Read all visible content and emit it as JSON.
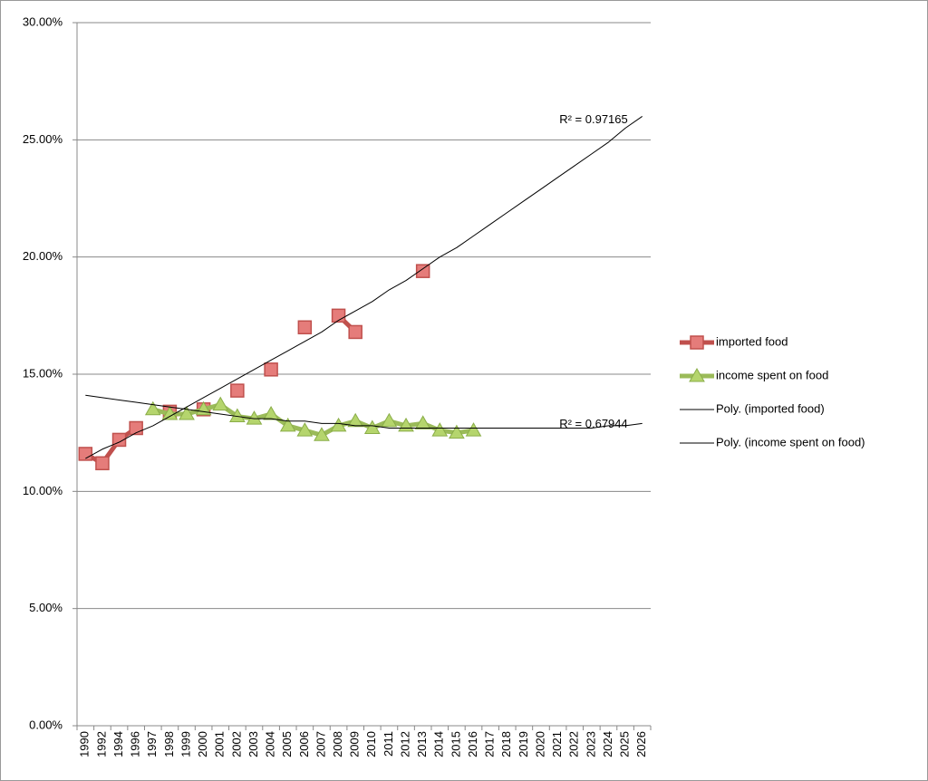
{
  "chart_data": {
    "type": "line",
    "categories": [
      "1990",
      "1992",
      "1994",
      "1996",
      "1997",
      "1998",
      "1999",
      "2000",
      "2001",
      "2002",
      "2003",
      "2004",
      "2005",
      "2006",
      "2007",
      "2008",
      "2009",
      "2010",
      "2011",
      "2012",
      "2013",
      "2014",
      "2015",
      "2016",
      "2017",
      "2018",
      "2019",
      "2020",
      "2021",
      "2022",
      "2023",
      "2024",
      "2025",
      "2026"
    ],
    "series": [
      {
        "name": "imported food",
        "color": "#c0504d",
        "marker": "square",
        "values": [
          11.6,
          11.2,
          12.2,
          12.7,
          null,
          13.4,
          null,
          13.5,
          null,
          14.3,
          null,
          15.2,
          null,
          17.0,
          null,
          17.5,
          16.8,
          null,
          null,
          null,
          19.4,
          null,
          null,
          null,
          null,
          null,
          null,
          null,
          null,
          null,
          null,
          null,
          null,
          null
        ]
      },
      {
        "name": "income spent on food",
        "color": "#9bbb59",
        "marker": "triangle",
        "values": [
          null,
          null,
          null,
          null,
          13.5,
          13.3,
          13.3,
          13.5,
          13.7,
          13.2,
          13.1,
          13.3,
          12.8,
          12.6,
          12.4,
          12.8,
          13.0,
          12.7,
          13.0,
          12.8,
          12.9,
          12.6,
          12.5,
          12.6,
          null,
          null,
          null,
          null,
          null,
          null,
          null,
          null,
          null,
          null
        ]
      },
      {
        "name": "Poly. (imported food)",
        "color": "#000000",
        "marker": "none",
        "values": [
          11.4,
          11.8,
          12.1,
          12.5,
          12.8,
          13.2,
          13.6,
          14.0,
          14.4,
          14.8,
          15.2,
          15.6,
          16.0,
          16.4,
          16.8,
          17.3,
          17.7,
          18.1,
          18.6,
          19.0,
          19.5,
          20.0,
          20.4,
          20.9,
          21.4,
          21.9,
          22.4,
          22.9,
          23.4,
          23.9,
          24.4,
          24.9,
          25.5,
          26.0
        ]
      },
      {
        "name": "Poly. (income spent on food)",
        "color": "#000000",
        "marker": "none",
        "values": [
          14.1,
          14.0,
          13.9,
          13.8,
          13.7,
          13.6,
          13.5,
          13.4,
          13.3,
          13.2,
          13.1,
          13.1,
          13.0,
          13.0,
          12.9,
          12.9,
          12.8,
          12.8,
          12.7,
          12.7,
          12.7,
          12.7,
          12.7,
          12.7,
          12.7,
          12.7,
          12.7,
          12.7,
          12.7,
          12.7,
          12.7,
          12.8,
          12.8,
          12.9
        ]
      }
    ],
    "annotations": [
      {
        "text": "R² = 0.97165",
        "x": "2022",
        "y": 26.0
      },
      {
        "text": "R² = 0.67944",
        "x": "2022",
        "y": 13.0
      }
    ],
    "ylim": [
      0,
      30
    ],
    "yticks": [
      {
        "value": 0,
        "label": "0.00%"
      },
      {
        "value": 5,
        "label": "5.00%"
      },
      {
        "value": 10,
        "label": "10.00%"
      },
      {
        "value": 15,
        "label": "15.00%"
      },
      {
        "value": 20,
        "label": "20.00%"
      },
      {
        "value": 25,
        "label": "25.00%"
      },
      {
        "value": 30,
        "label": "30.00%"
      }
    ],
    "grid": true,
    "legend": "right"
  }
}
